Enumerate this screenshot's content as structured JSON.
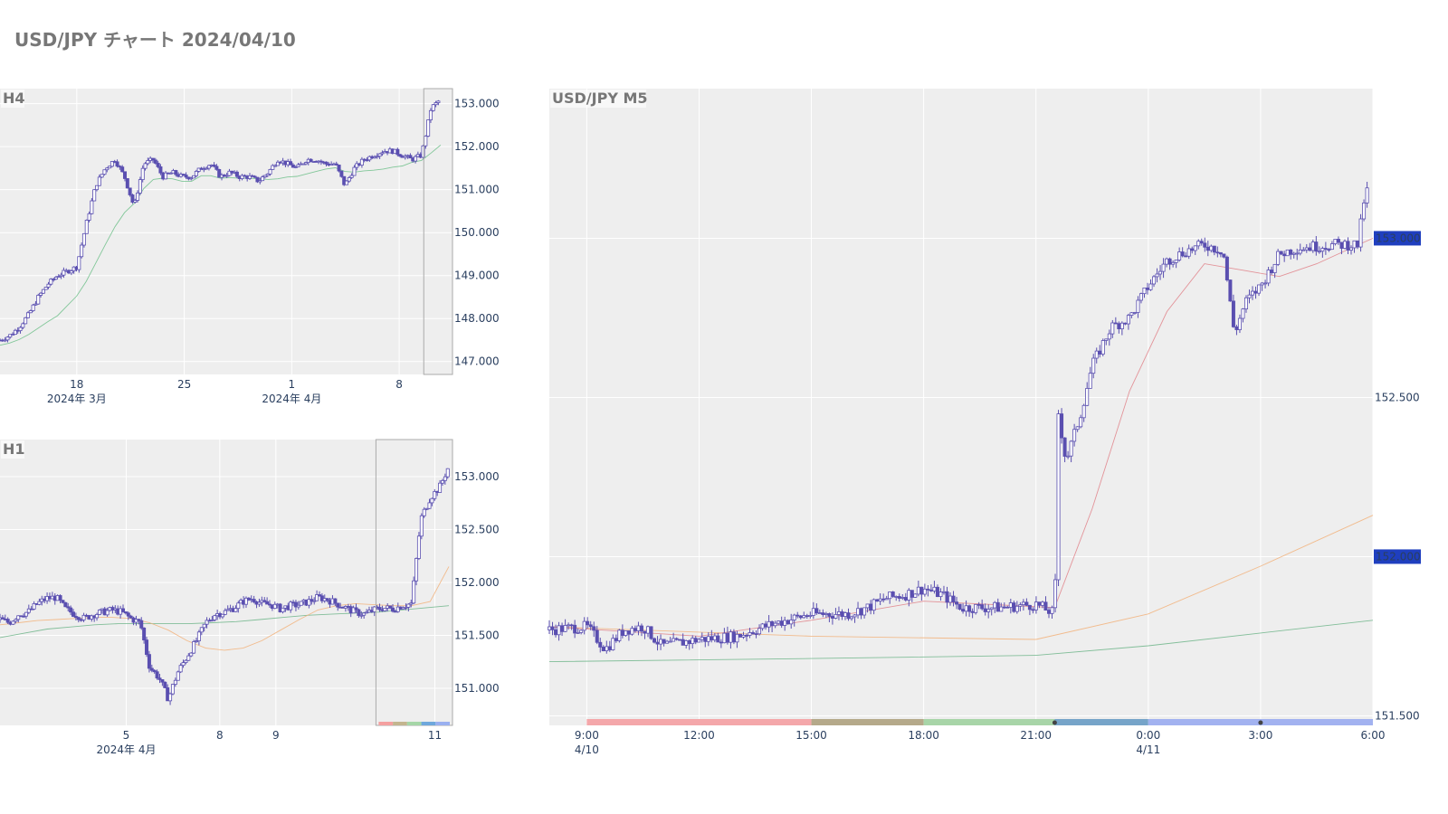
{
  "title": "USD/JPY チャート 2024/04/10",
  "colors": {
    "candle": "#5a4fb0",
    "plot_bg": "#eeeeee",
    "price_tag": "#1f3fbf"
  },
  "chart_data": [
    {
      "id": "h4",
      "type": "candlestick",
      "title": "H4",
      "ylim": [
        146.7,
        153.35
      ],
      "y_ticks": [
        "153.000",
        "152.000",
        "151.000",
        "150.000",
        "149.000",
        "148.000",
        "147.000"
      ],
      "y_tick_values": [
        153,
        152,
        151,
        150,
        149,
        148,
        147
      ],
      "x_ticks": [
        "18",
        "25",
        "1",
        "8"
      ],
      "x_subticks": [
        "2024年 3月",
        "",
        "2024年 4月",
        ""
      ],
      "x_range_days": [
        "2024-03-13",
        "2024-04-11"
      ],
      "x_tick_dates": [
        "2024-03-18",
        "2024-03-25",
        "2024-04-01",
        "2024-04-08"
      ],
      "ma": [
        {
          "color": "#6fc08a",
          "values_hint": "slow MA"
        }
      ],
      "close_path": [
        147.5,
        147.6,
        147.8,
        148.1,
        148.5,
        148.8,
        149.0,
        149.1,
        149.2,
        150.2,
        151.1,
        151.5,
        151.7,
        151.3,
        150.6,
        151.6,
        151.7,
        151.3,
        151.4,
        151.3,
        151.3,
        151.5,
        151.6,
        151.3,
        151.4,
        151.3,
        151.3,
        151.2,
        151.4,
        151.7,
        151.6,
        151.5,
        151.7,
        151.7,
        151.6,
        151.6,
        151.1,
        151.5,
        151.7,
        151.8,
        151.9,
        151.9,
        151.8,
        151.7,
        151.8,
        152.9,
        153.1
      ],
      "highlight_window": true
    },
    {
      "id": "h1",
      "type": "candlestick",
      "title": "H1",
      "ylim": [
        150.65,
        153.35
      ],
      "y_ticks": [
        "153.000",
        "152.500",
        "152.000",
        "151.500",
        "151.000"
      ],
      "y_tick_values": [
        153.0,
        152.5,
        152.0,
        151.5,
        151.0
      ],
      "x_ticks": [
        "5",
        "8",
        "9",
        "11"
      ],
      "x_subticks": [
        "2024年 4月",
        "",
        "",
        ""
      ],
      "close_path": [
        151.65,
        151.62,
        151.7,
        151.72,
        151.8,
        151.85,
        151.86,
        151.75,
        151.7,
        151.66,
        151.7,
        151.72,
        151.74,
        151.72,
        151.66,
        151.62,
        151.2,
        151.1,
        150.9,
        151.15,
        151.3,
        151.45,
        151.62,
        151.7,
        151.72,
        151.76,
        151.82,
        151.85,
        151.8,
        151.79,
        151.75,
        151.78,
        151.79,
        151.82,
        151.86,
        151.84,
        151.8,
        151.76,
        151.72,
        151.7,
        151.74,
        151.76,
        151.75,
        151.78,
        151.8,
        152.6,
        152.8,
        152.9,
        153.1
      ],
      "ma_fast": [
        151.6,
        151.62,
        151.64,
        151.65,
        151.66,
        151.67,
        151.67,
        151.66,
        151.62,
        151.55,
        151.45,
        151.38,
        151.36,
        151.38,
        151.45,
        151.55,
        151.65,
        151.74,
        151.78,
        151.8,
        151.79,
        151.78,
        151.78,
        151.82,
        152.15
      ],
      "ma_slow": [
        151.48,
        151.52,
        151.56,
        151.58,
        151.6,
        151.61,
        151.61,
        151.61,
        151.61,
        151.62,
        151.63,
        151.65,
        151.67,
        151.69,
        151.7,
        151.71,
        151.72,
        151.74,
        151.76,
        151.78
      ],
      "session_bar": [
        "#f4a0a0",
        "#c3b58f",
        "#a5d6a7",
        "#6fa8dc",
        "#9ab0f0"
      ]
    },
    {
      "id": "m5",
      "type": "candlestick",
      "title": "USD/JPY M5",
      "ylim": [
        151.47,
        153.47
      ],
      "y_ticks": [
        "153.000",
        "152.500",
        "152.000",
        "151.500"
      ],
      "y_tick_values": [
        153.0,
        152.5,
        152.0,
        151.5
      ],
      "price_tags": [
        {
          "label": "153.000",
          "value": 153.0
        },
        {
          "label": "152.000",
          "value": 152.0
        }
      ],
      "x_ticks": [
        "9:00",
        "12:00",
        "15:00",
        "18:00",
        "21:00",
        "0:00",
        "3:00",
        "6:00"
      ],
      "x_subticks": [
        "4/10",
        "",
        "",
        "",
        "",
        "4/11",
        "",
        ""
      ],
      "x_tick_hours": [
        9,
        12,
        15,
        18,
        21,
        24,
        27,
        30
      ],
      "x_range_hours": [
        8.0,
        30.0
      ],
      "close_path": [
        [
          8.0,
          151.77
        ],
        [
          9.0,
          151.78
        ],
        [
          9.5,
          151.71
        ],
        [
          10.0,
          151.77
        ],
        [
          10.5,
          151.78
        ],
        [
          11.0,
          151.72
        ],
        [
          12.0,
          151.74
        ],
        [
          13.0,
          151.75
        ],
        [
          14.0,
          151.79
        ],
        [
          15.0,
          151.82
        ],
        [
          16.0,
          151.82
        ],
        [
          16.5,
          151.84
        ],
        [
          17.0,
          151.87
        ],
        [
          17.5,
          151.88
        ],
        [
          18.0,
          151.9
        ],
        [
          18.5,
          151.88
        ],
        [
          19.0,
          151.84
        ],
        [
          20.0,
          151.84
        ],
        [
          21.0,
          151.85
        ],
        [
          21.5,
          151.82
        ],
        [
          21.6,
          152.45
        ],
        [
          21.8,
          152.3
        ],
        [
          22.2,
          152.45
        ],
        [
          22.5,
          152.6
        ],
        [
          23.0,
          152.72
        ],
        [
          23.5,
          152.75
        ],
        [
          24.0,
          152.85
        ],
        [
          24.5,
          152.93
        ],
        [
          25.0,
          152.96
        ],
        [
          25.5,
          152.98
        ],
        [
          26.0,
          152.96
        ],
        [
          26.3,
          152.7
        ],
        [
          26.6,
          152.8
        ],
        [
          27.0,
          152.85
        ],
        [
          27.5,
          152.95
        ],
        [
          28.0,
          152.97
        ],
        [
          29.0,
          152.98
        ],
        [
          29.6,
          152.98
        ],
        [
          29.8,
          153.15
        ],
        [
          30.0,
          153.14
        ]
      ],
      "ma_fast": [
        [
          8.0,
          151.78
        ],
        [
          12.0,
          151.75
        ],
        [
          15.0,
          151.8
        ],
        [
          18.0,
          151.86
        ],
        [
          21.5,
          151.84
        ],
        [
          22.5,
          152.15
        ],
        [
          23.5,
          152.52
        ],
        [
          24.5,
          152.77
        ],
        [
          25.5,
          152.92
        ],
        [
          26.5,
          152.9
        ],
        [
          27.5,
          152.88
        ],
        [
          28.5,
          152.92
        ],
        [
          30.0,
          153.0
        ]
      ],
      "ma_mid": [
        [
          8.0,
          151.78
        ],
        [
          15.0,
          151.75
        ],
        [
          21.0,
          151.74
        ],
        [
          24.0,
          151.82
        ],
        [
          27.0,
          151.97
        ],
        [
          30.0,
          152.13
        ]
      ],
      "ma_slow": [
        [
          8.0,
          151.67
        ],
        [
          15.0,
          151.68
        ],
        [
          21.0,
          151.69
        ],
        [
          24.0,
          151.72
        ],
        [
          27.0,
          151.76
        ],
        [
          30.0,
          151.8
        ]
      ],
      "session_bar": [
        {
          "from": 9.0,
          "to": 15.0,
          "color": "#f4a7aa"
        },
        {
          "from": 15.0,
          "to": 18.0,
          "color": "#b5a98a"
        },
        {
          "from": 18.0,
          "to": 21.5,
          "color": "#a8d5a8"
        },
        {
          "from": 21.5,
          "to": 24.0,
          "color": "#76a4c9"
        },
        {
          "from": 24.0,
          "to": 30.0,
          "color": "#a2b2f0"
        }
      ],
      "session_markers": [
        21.5,
        27.0
      ]
    }
  ]
}
